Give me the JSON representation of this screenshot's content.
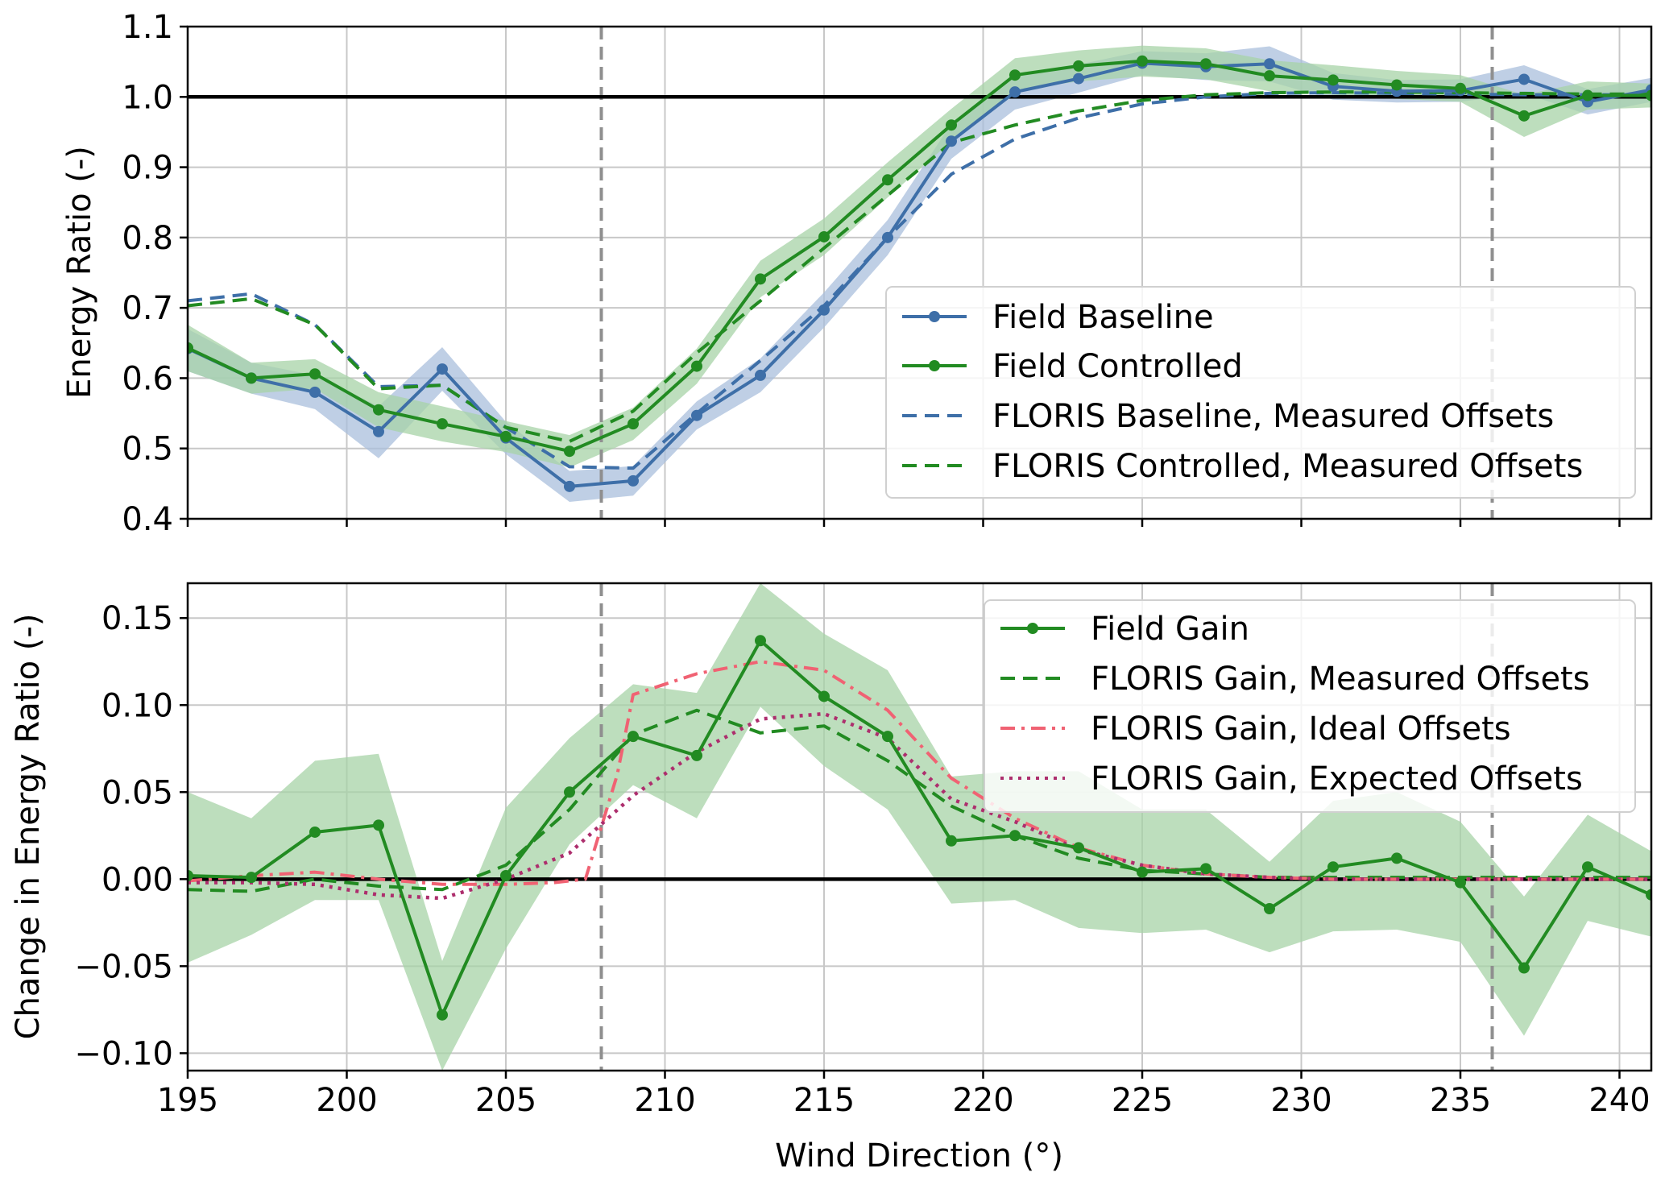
{
  "colors": {
    "baseline": "#3e6fa8",
    "baseline_band": "#a9bfdc",
    "controlled": "#228b22",
    "controlled_band": "#a7d3a7",
    "ideal": "#f06273",
    "expected": "#ad2e6d",
    "grid": "#c8c8c8",
    "vline": "#8f8f8f"
  },
  "chart_data": [
    {
      "type": "line",
      "xlabel": "",
      "ylabel": "Energy Ratio (-)",
      "xlim": [
        195,
        241
      ],
      "ylim": [
        0.4,
        1.1
      ],
      "xticks": [
        "195",
        "200",
        "205",
        "210",
        "215",
        "220",
        "225",
        "230",
        "235",
        "240"
      ],
      "yticks": [
        "0.4",
        "0.5",
        "0.6",
        "0.7",
        "0.8",
        "0.9",
        "1.0",
        "1.1"
      ],
      "grid": true,
      "legend_position": "center-right",
      "hline": 1.0,
      "vlines": [
        208,
        236
      ],
      "series": [
        {
          "name": "Field Baseline",
          "style": "solid-markers",
          "color_key": "baseline",
          "x": [
            195,
            197,
            199,
            201,
            203,
            205,
            207,
            209,
            211,
            213,
            215,
            217,
            219,
            221,
            223,
            225,
            227,
            229,
            231,
            233,
            235,
            237,
            239,
            241
          ],
          "y": [
            0.642,
            0.6,
            0.58,
            0.524,
            0.613,
            0.515,
            0.446,
            0.454,
            0.547,
            0.604,
            0.697,
            0.8,
            0.937,
            1.007,
            1.026,
            1.048,
            1.043,
            1.047,
            1.015,
            1.008,
            1.009,
            1.025,
            0.993,
            1.01
          ],
          "band_lower": [
            0.61,
            0.578,
            0.556,
            0.486,
            0.582,
            0.492,
            0.424,
            0.433,
            0.527,
            0.58,
            0.672,
            0.775,
            0.912,
            0.982,
            1.006,
            1.031,
            1.024,
            1.022,
            0.996,
            0.992,
            0.993,
            1.005,
            0.975,
            0.993
          ],
          "band_upper": [
            0.67,
            0.622,
            0.604,
            0.56,
            0.644,
            0.538,
            0.468,
            0.475,
            0.567,
            0.628,
            0.722,
            0.825,
            0.962,
            1.032,
            1.046,
            1.065,
            1.062,
            1.072,
            1.034,
            1.024,
            1.025,
            1.045,
            1.011,
            1.027
          ]
        },
        {
          "name": "Field Controlled",
          "style": "solid-markers",
          "color_key": "controlled",
          "x": [
            195,
            197,
            199,
            201,
            203,
            205,
            207,
            209,
            211,
            213,
            215,
            217,
            219,
            221,
            223,
            225,
            227,
            229,
            231,
            233,
            235,
            237,
            239,
            241
          ],
          "y": [
            0.643,
            0.6,
            0.606,
            0.555,
            0.535,
            0.517,
            0.496,
            0.535,
            0.617,
            0.741,
            0.801,
            0.882,
            0.96,
            1.031,
            1.044,
            1.051,
            1.047,
            1.03,
            1.024,
            1.017,
            1.012,
            0.973,
            1.002,
            1.002
          ],
          "band_lower": [
            0.61,
            0.578,
            0.585,
            0.53,
            0.51,
            0.495,
            0.473,
            0.512,
            0.592,
            0.715,
            0.775,
            0.857,
            0.937,
            1.01,
            1.022,
            1.029,
            1.025,
            1.008,
            1.003,
            0.997,
            0.993,
            0.943,
            0.982,
            0.985
          ],
          "band_upper": [
            0.676,
            0.622,
            0.627,
            0.58,
            0.56,
            0.539,
            0.519,
            0.558,
            0.642,
            0.767,
            0.827,
            0.907,
            0.983,
            1.055,
            1.066,
            1.073,
            1.069,
            1.052,
            1.045,
            1.037,
            1.031,
            1.003,
            1.022,
            1.019
          ]
        },
        {
          "name": "FLORIS Baseline, Measured Offsets",
          "style": "dashed",
          "color_key": "baseline",
          "x": [
            195,
            197,
            199,
            201,
            203,
            205,
            207,
            209,
            211,
            213,
            215,
            217,
            219,
            221,
            223,
            225,
            227,
            229,
            231,
            233,
            235,
            237,
            239,
            241
          ],
          "y": [
            0.71,
            0.72,
            0.676,
            0.588,
            0.59,
            0.53,
            0.474,
            0.472,
            0.55,
            0.625,
            0.703,
            0.8,
            0.89,
            0.94,
            0.97,
            0.99,
            1.0,
            1.005,
            1.006,
            1.005,
            1.004,
            1.003,
            1.003,
            1.003
          ]
        },
        {
          "name": "FLORIS Controlled, Measured Offsets",
          "style": "dashed",
          "color_key": "controlled",
          "x": [
            195,
            197,
            199,
            201,
            203,
            205,
            207,
            209,
            211,
            213,
            215,
            217,
            219,
            221,
            223,
            225,
            227,
            229,
            231,
            233,
            235,
            237,
            239,
            241
          ],
          "y": [
            0.703,
            0.713,
            0.676,
            0.585,
            0.59,
            0.53,
            0.51,
            0.553,
            0.636,
            0.71,
            0.785,
            0.86,
            0.935,
            0.96,
            0.98,
            0.995,
            1.003,
            1.006,
            1.007,
            1.007,
            1.006,
            1.005,
            1.004,
            1.004
          ]
        }
      ]
    },
    {
      "type": "line",
      "xlabel": "Wind Direction (°)",
      "ylabel": "Change in Energy Ratio (-)",
      "xlim": [
        195,
        241
      ],
      "ylim": [
        -0.11,
        0.17
      ],
      "xticks": [
        "195",
        "200",
        "205",
        "210",
        "215",
        "220",
        "225",
        "230",
        "235",
        "240"
      ],
      "yticks": [
        "−0.10",
        "−0.05",
        "0.00",
        "0.05",
        "0.10",
        "0.15"
      ],
      "grid": true,
      "legend_position": "upper-right",
      "hline": 0.0,
      "vlines": [
        208,
        236
      ],
      "series": [
        {
          "name": "Field Gain",
          "style": "solid-markers",
          "color_key": "controlled",
          "x": [
            195,
            197,
            199,
            201,
            203,
            205,
            207,
            209,
            211,
            213,
            215,
            217,
            219,
            221,
            223,
            225,
            227,
            229,
            231,
            233,
            235,
            237,
            239,
            241
          ],
          "y": [
            0.002,
            0.001,
            0.027,
            0.031,
            -0.078,
            0.002,
            0.05,
            0.082,
            0.071,
            0.137,
            0.105,
            0.082,
            0.022,
            0.025,
            0.018,
            0.004,
            0.006,
            -0.017,
            0.007,
            0.012,
            -0.002,
            -0.051,
            0.007,
            -0.009
          ],
          "band_lower": [
            -0.048,
            -0.032,
            -0.012,
            -0.012,
            -0.11,
            -0.04,
            0.02,
            0.054,
            0.035,
            0.099,
            0.065,
            0.04,
            -0.014,
            -0.012,
            -0.028,
            -0.031,
            -0.029,
            -0.042,
            -0.03,
            -0.029,
            -0.036,
            -0.09,
            -0.024,
            -0.033
          ],
          "band_upper": [
            0.05,
            0.035,
            0.068,
            0.072,
            -0.047,
            0.041,
            0.081,
            0.112,
            0.107,
            0.17,
            0.141,
            0.12,
            0.059,
            0.062,
            0.062,
            0.04,
            0.04,
            0.01,
            0.045,
            0.05,
            0.033,
            -0.01,
            0.037,
            0.016
          ]
        },
        {
          "name": "FLORIS Gain, Measured Offsets",
          "style": "dashed",
          "color_key": "controlled",
          "x": [
            195,
            197,
            199,
            201,
            203,
            205,
            207,
            209,
            211,
            213,
            215,
            217,
            219,
            221,
            223,
            225,
            227,
            229,
            231,
            233,
            235,
            237,
            239,
            241
          ],
          "y": [
            -0.006,
            -0.007,
            0.0,
            -0.004,
            -0.006,
            0.008,
            0.04,
            0.083,
            0.097,
            0.084,
            0.088,
            0.068,
            0.042,
            0.025,
            0.012,
            0.005,
            0.003,
            0.001,
            0.001,
            0.001,
            0.001,
            0.001,
            0.001,
            0.001
          ]
        },
        {
          "name": "FLORIS Gain, Ideal Offsets",
          "style": "dashdot",
          "color_key": "ideal",
          "x": [
            195,
            197,
            199,
            201,
            203,
            205,
            206.5,
            207.5,
            208.5,
            209,
            211,
            213,
            215,
            217,
            219,
            221,
            223,
            225,
            227,
            229,
            231,
            233,
            235,
            237,
            239,
            241
          ],
          "y": [
            -0.001,
            0.002,
            0.004,
            0.0,
            -0.003,
            -0.003,
            -0.002,
            0.0,
            0.06,
            0.106,
            0.118,
            0.125,
            0.12,
            0.097,
            0.058,
            0.035,
            0.018,
            0.008,
            0.003,
            0.001,
            0.0,
            0.0,
            0.0,
            0.0,
            0.0,
            0.0
          ]
        },
        {
          "name": "FLORIS Gain, Expected Offsets",
          "style": "dotted",
          "color_key": "expected",
          "x": [
            195,
            197,
            199,
            201,
            203,
            205,
            207,
            209,
            211,
            213,
            215,
            217,
            219,
            221,
            223,
            225,
            227,
            229,
            231,
            233,
            235,
            237,
            239,
            241
          ],
          "y": [
            -0.002,
            -0.002,
            -0.003,
            -0.009,
            -0.011,
            0.0,
            0.015,
            0.048,
            0.073,
            0.092,
            0.095,
            0.081,
            0.046,
            0.033,
            0.017,
            0.008,
            0.003,
            0.001,
            0.0,
            0.0,
            0.0,
            0.0,
            0.0,
            0.0
          ]
        }
      ]
    }
  ]
}
